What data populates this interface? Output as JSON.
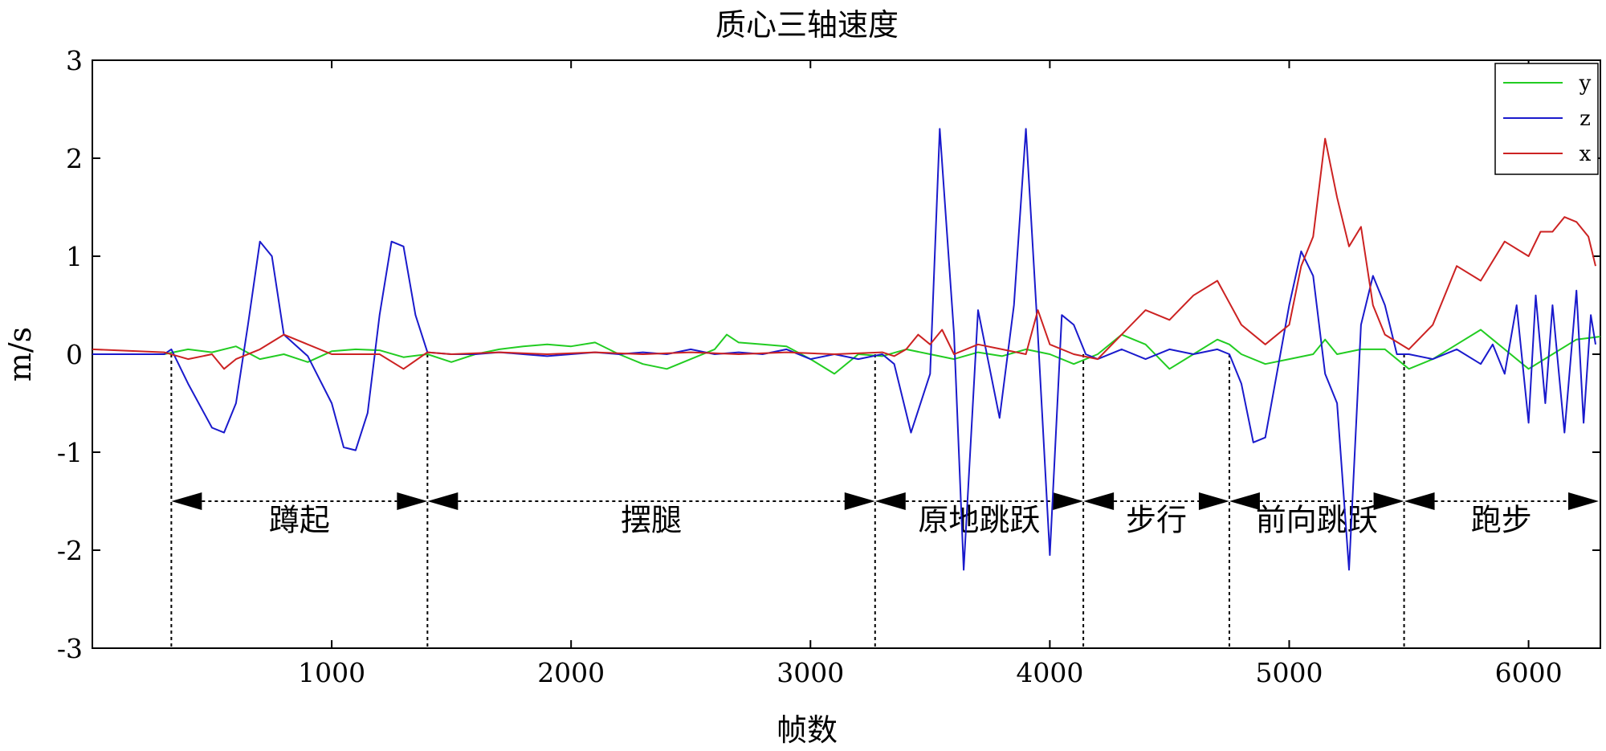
{
  "chart_data": {
    "type": "line",
    "title": "质心三轴速度",
    "xlabel": "帧数",
    "ylabel": "m/s",
    "xlim": [
      0,
      6300
    ],
    "ylim": [
      -3,
      3
    ],
    "xticks": [
      1000,
      2000,
      3000,
      4000,
      5000,
      6000
    ],
    "yticks": [
      -3,
      -2,
      -1,
      0,
      1,
      2,
      3
    ],
    "xtick_labels": [
      "1000",
      "2000",
      "3000",
      "4000",
      "5000",
      "6000"
    ],
    "ytick_labels": [
      "-3",
      "-2",
      "-1",
      "0",
      "1",
      "2",
      "3"
    ],
    "grid": false,
    "legend_position": "top-right",
    "series": [
      {
        "name": "y",
        "color": "#22cc22",
        "x": [
          0,
          300,
          400,
          500,
          600,
          700,
          800,
          900,
          1000,
          1100,
          1200,
          1300,
          1400,
          1500,
          1600,
          1700,
          1800,
          1900,
          2000,
          2100,
          2200,
          2300,
          2400,
          2500,
          2600,
          2650,
          2700,
          2800,
          2900,
          3000,
          3100,
          3200,
          3300,
          3400,
          3500,
          3600,
          3700,
          3800,
          3900,
          4000,
          4100,
          4200,
          4300,
          4400,
          4500,
          4600,
          4700,
          4750,
          4800,
          4900,
          5000,
          5100,
          5150,
          5200,
          5300,
          5400,
          5500,
          5600,
          5700,
          5800,
          5850,
          5900,
          6000,
          6100,
          6200,
          6300
        ],
        "y": [
          0.0,
          0.0,
          0.05,
          0.02,
          0.08,
          -0.05,
          0.0,
          -0.08,
          0.03,
          0.05,
          0.04,
          -0.03,
          0.0,
          -0.08,
          0.0,
          0.05,
          0.08,
          0.1,
          0.08,
          0.12,
          0.0,
          -0.1,
          -0.15,
          -0.05,
          0.05,
          0.2,
          0.12,
          0.1,
          0.08,
          -0.05,
          -0.2,
          0.0,
          -0.02,
          0.05,
          0.0,
          -0.05,
          0.02,
          -0.02,
          0.05,
          0.0,
          -0.1,
          0.0,
          0.2,
          0.1,
          -0.15,
          0.0,
          0.15,
          0.1,
          0.0,
          -0.1,
          -0.05,
          0.0,
          0.15,
          0.0,
          0.05,
          0.05,
          -0.15,
          -0.05,
          0.1,
          0.25,
          0.15,
          0.05,
          -0.15,
          0.0,
          0.15,
          0.18
        ]
      },
      {
        "name": "z",
        "color": "#1a1acc",
        "x": [
          0,
          300,
          330,
          400,
          500,
          550,
          600,
          650,
          700,
          750,
          800,
          900,
          1000,
          1050,
          1100,
          1150,
          1200,
          1250,
          1300,
          1350,
          1400,
          1500,
          1600,
          1700,
          1800,
          1900,
          2000,
          2100,
          2200,
          2300,
          2400,
          2500,
          2600,
          2700,
          2800,
          2900,
          3000,
          3100,
          3200,
          3300,
          3350,
          3420,
          3500,
          3540,
          3600,
          3640,
          3700,
          3790,
          3850,
          3900,
          3950,
          4000,
          4050,
          4100,
          4150,
          4200,
          4300,
          4400,
          4500,
          4600,
          4700,
          4750,
          4800,
          4850,
          4900,
          5000,
          5050,
          5100,
          5150,
          5200,
          5250,
          5300,
          5350,
          5400,
          5450,
          5500,
          5600,
          5700,
          5800,
          5850,
          5900,
          5950,
          6000,
          6030,
          6070,
          6100,
          6150,
          6200,
          6230,
          6260,
          6280
        ],
        "y": [
          0.0,
          0.0,
          0.05,
          -0.3,
          -0.75,
          -0.8,
          -0.5,
          0.3,
          1.15,
          1.0,
          0.2,
          -0.02,
          -0.5,
          -0.95,
          -0.98,
          -0.6,
          0.4,
          1.15,
          1.1,
          0.4,
          0.02,
          0.0,
          0.0,
          0.02,
          0.0,
          -0.02,
          0.0,
          0.02,
          0.0,
          0.02,
          0.0,
          0.05,
          0.0,
          0.02,
          0.0,
          0.05,
          -0.05,
          0.0,
          -0.05,
          0.0,
          -0.1,
          -0.8,
          -0.2,
          2.3,
          0.2,
          -2.2,
          0.45,
          -0.65,
          0.5,
          2.3,
          0.2,
          -2.05,
          0.4,
          0.3,
          0.0,
          -0.05,
          0.05,
          -0.05,
          0.05,
          0.0,
          0.05,
          0.0,
          -0.3,
          -0.9,
          -0.85,
          0.5,
          1.05,
          0.8,
          -0.2,
          -0.5,
          -2.2,
          0.3,
          0.8,
          0.5,
          0.0,
          0.0,
          -0.05,
          0.05,
          -0.1,
          0.1,
          -0.2,
          0.5,
          -0.7,
          0.6,
          -0.5,
          0.5,
          -0.8,
          0.65,
          -0.7,
          0.4,
          0.1
        ]
      },
      {
        "name": "x",
        "color": "#cc2222",
        "x": [
          0,
          300,
          400,
          500,
          550,
          600,
          700,
          800,
          900,
          1000,
          1100,
          1200,
          1300,
          1400,
          1500,
          1700,
          1900,
          2100,
          2300,
          2500,
          2700,
          2900,
          3100,
          3300,
          3350,
          3400,
          3450,
          3500,
          3550,
          3600,
          3700,
          3800,
          3900,
          3950,
          4000,
          4100,
          4200,
          4300,
          4400,
          4500,
          4600,
          4700,
          4800,
          4900,
          5000,
          5050,
          5100,
          5150,
          5200,
          5250,
          5300,
          5350,
          5400,
          5500,
          5600,
          5700,
          5800,
          5900,
          6000,
          6050,
          6100,
          6150,
          6200,
          6250,
          6280
        ],
        "y": [
          0.05,
          0.02,
          -0.05,
          0.0,
          -0.15,
          -0.05,
          0.05,
          0.2,
          0.1,
          0.0,
          0.0,
          0.0,
          -0.15,
          0.02,
          0.0,
          0.02,
          0.0,
          0.02,
          0.0,
          0.02,
          0.0,
          0.02,
          0.0,
          0.02,
          -0.02,
          0.05,
          0.2,
          0.1,
          0.25,
          0.0,
          0.1,
          0.05,
          0.0,
          0.45,
          0.1,
          0.0,
          -0.05,
          0.2,
          0.45,
          0.35,
          0.6,
          0.75,
          0.3,
          0.1,
          0.3,
          0.9,
          1.2,
          2.2,
          1.6,
          1.1,
          1.3,
          0.5,
          0.2,
          0.05,
          0.3,
          0.9,
          0.75,
          1.15,
          1.0,
          1.25,
          1.25,
          1.4,
          1.35,
          1.2,
          0.9
        ]
      }
    ],
    "segments": [
      {
        "label": "蹲起",
        "start": 330,
        "end": 1400
      },
      {
        "label": "摆腿",
        "start": 1400,
        "end": 3270
      },
      {
        "label": "原地跳跃",
        "start": 3270,
        "end": 4140
      },
      {
        "label": "步行",
        "start": 4140,
        "end": 4750
      },
      {
        "label": "前向跳跃",
        "start": 4750,
        "end": 5480
      },
      {
        "label": "跑步",
        "start": 5480,
        "end": 6300
      }
    ],
    "segment_arrow_y": -1.5,
    "segment_label_y": -1.8
  }
}
